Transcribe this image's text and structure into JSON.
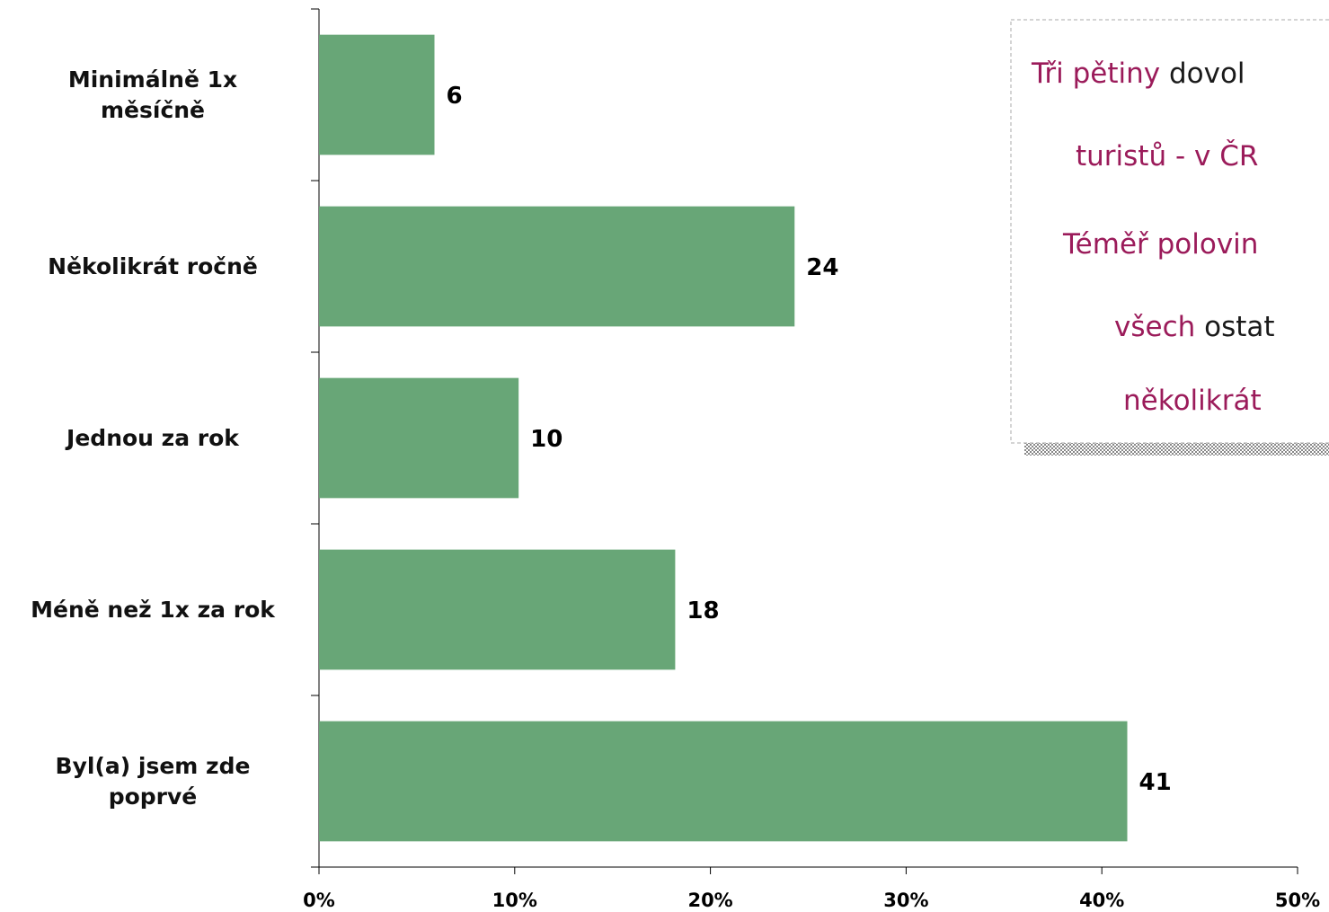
{
  "chart_data": {
    "type": "bar",
    "orientation": "horizontal",
    "categories": [
      "Minimálně 1x\nměsíčně",
      "Několikrát ročně",
      "Jednou za rok",
      "Méně než 1x za rok",
      "Byl(a) jsem zde\npoprvé"
    ],
    "values": [
      5.9,
      24.3,
      10.2,
      18.2,
      41.3
    ],
    "value_labels": [
      "6",
      "24",
      "10",
      "18",
      "41"
    ],
    "color": "#68a677",
    "xlim": [
      0,
      50
    ],
    "xticks": [
      {
        "value": 0,
        "label": "0%"
      },
      {
        "value": 10,
        "label": "10%"
      },
      {
        "value": 20,
        "label": "20%"
      },
      {
        "value": 30,
        "label": "30%"
      },
      {
        "value": 40,
        "label": "40%"
      },
      {
        "value": 50,
        "label": "50%"
      }
    ],
    "annotation": {
      "highlight_color": "#9b1b5a",
      "text_color": "#1a1a1a",
      "lines": [
        [
          {
            "text": "Tři pětiny",
            "highlight": true
          },
          {
            "text": " dovol",
            "highlight": false
          }
        ],
        [
          {
            "text": "turistů - v ČR",
            "highlight": true
          }
        ],
        [
          {
            "text": "Téměř polovin",
            "highlight": true
          }
        ],
        [
          {
            "text": "všech",
            "highlight": true
          },
          {
            "text": " ostat",
            "highlight": false
          }
        ],
        [
          {
            "text": "několikrát",
            "highlight": true
          }
        ]
      ]
    }
  }
}
